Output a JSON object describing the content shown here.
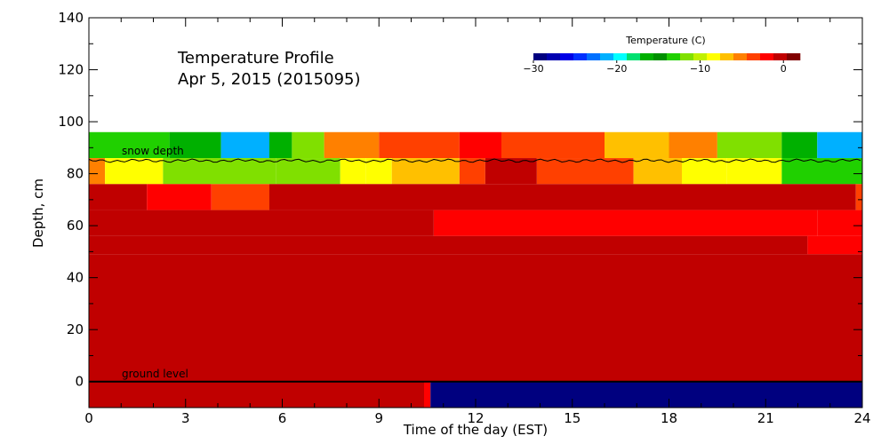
{
  "chart_data": {
    "type": "heatmap",
    "title": "Temperature Profile",
    "subtitle": "Apr  5, 2015 (2015095)",
    "xlabel": "Time of the day (EST)",
    "ylabel": "Depth, cm",
    "xlim": [
      0,
      24
    ],
    "ylim": [
      -10,
      140
    ],
    "xticks": [
      0,
      3,
      6,
      9,
      12,
      15,
      18,
      21,
      24
    ],
    "yticks": [
      0,
      20,
      40,
      60,
      80,
      100,
      120,
      140
    ],
    "grid": false,
    "annotations": {
      "snow_depth_label": "snow depth",
      "ground_level_label": "ground level"
    },
    "colorbar": {
      "title": "Temperature (C)",
      "range": [
        -30,
        2
      ],
      "ticks": [
        -30,
        -20,
        -10,
        0
      ],
      "tick_labels": [
        "−30",
        "−20",
        "−10",
        "0"
      ],
      "colors": [
        "#00007f",
        "#0000b0",
        "#0000e6",
        "#0030ff",
        "#0070ff",
        "#00b0ff",
        "#00ffff",
        "#00e070",
        "#00b000",
        "#009000",
        "#20d000",
        "#80e000",
        "#c0f000",
        "#ffff00",
        "#ffc000",
        "#ff8000",
        "#ff4000",
        "#ff0000",
        "#c00000",
        "#800000"
      ]
    },
    "ground_level": 0,
    "snow_depth_cm": 85,
    "layers": [
      {
        "y0": 86,
        "y1": 96,
        "segments": [
          [
            0,
            2.5,
            -13
          ],
          [
            2.5,
            4.1,
            -16
          ],
          [
            4.1,
            5.6,
            -22
          ],
          [
            5.6,
            6.3,
            -17
          ],
          [
            6.3,
            7.3,
            -12
          ],
          [
            7.3,
            9.0,
            -6
          ],
          [
            9.0,
            11.5,
            -4
          ],
          [
            11.5,
            12.8,
            -2
          ],
          [
            12.8,
            16.0,
            -4
          ],
          [
            16.0,
            18.0,
            -7
          ],
          [
            18.0,
            19.5,
            -5
          ],
          [
            19.5,
            21.5,
            -12
          ],
          [
            21.5,
            22.6,
            -16
          ],
          [
            22.6,
            24,
            -22
          ]
        ]
      },
      {
        "y0": 76,
        "y1": 86,
        "segments": [
          [
            0,
            0.5,
            -6
          ],
          [
            0.5,
            2.3,
            -9
          ],
          [
            2.3,
            5.8,
            -12
          ],
          [
            5.8,
            7.8,
            -12
          ],
          [
            7.8,
            8.6,
            -9
          ],
          [
            8.6,
            9.4,
            -8
          ],
          [
            9.4,
            11.5,
            -7
          ],
          [
            11.5,
            12.3,
            -4
          ],
          [
            12.3,
            13.9,
            -1
          ],
          [
            13.9,
            16.9,
            -4
          ],
          [
            16.9,
            18.4,
            -7
          ],
          [
            18.4,
            19.8,
            -8
          ],
          [
            19.8,
            21.5,
            -9
          ],
          [
            21.5,
            24,
            -13
          ]
        ]
      },
      {
        "y0": 66,
        "y1": 76,
        "segments": [
          [
            0,
            1.8,
            0
          ],
          [
            1.8,
            3.8,
            -2
          ],
          [
            3.8,
            5.6,
            -3
          ],
          [
            5.6,
            23.8,
            -1
          ],
          [
            23.8,
            24,
            -3
          ]
        ]
      },
      {
        "y0": 56,
        "y1": 66,
        "segments": [
          [
            0,
            10.7,
            0
          ],
          [
            10.7,
            22.6,
            -2
          ],
          [
            22.6,
            24,
            -2
          ]
        ]
      },
      {
        "y0": 49,
        "y1": 56,
        "segments": [
          [
            0,
            22.3,
            0
          ],
          [
            22.3,
            24,
            -2
          ]
        ]
      },
      {
        "y0": 0,
        "y1": 49,
        "segments": [
          [
            0,
            24,
            0
          ]
        ]
      },
      {
        "y0": -10,
        "y1": 0,
        "segments": [
          [
            0,
            10.4,
            0
          ],
          [
            10.4,
            10.6,
            -2
          ],
          [
            10.6,
            24,
            -30
          ]
        ]
      }
    ]
  }
}
